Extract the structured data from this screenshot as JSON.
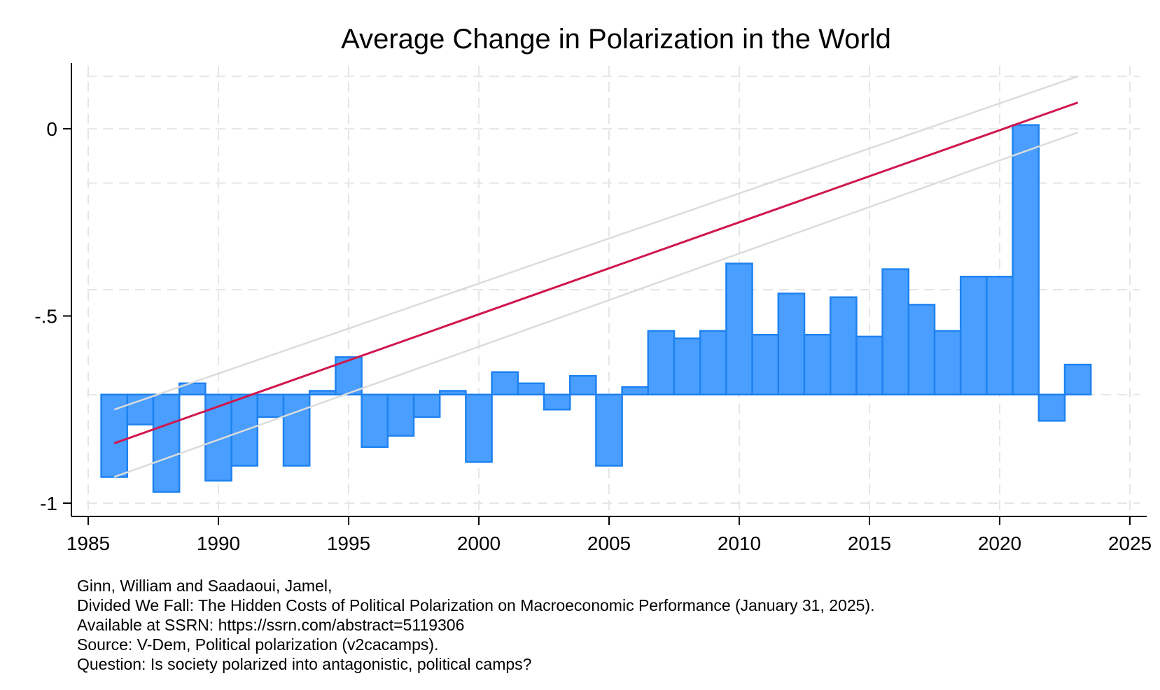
{
  "colors": {
    "bar_fill": "#4A9EFF",
    "bar_edge": "#1E82F0",
    "fit_line": "#D0174E",
    "ci_line": "#DCDCDC",
    "grid": "#E6E6E6",
    "axis": "#000000"
  },
  "chart_data": {
    "type": "bar",
    "title": "Average Change in Polarization in the World",
    "xlabel": "",
    "ylabel": "",
    "xlim": [
      1985,
      2025
    ],
    "ylim": [
      -1.04,
      0.17
    ],
    "xticks": [
      1985,
      1990,
      1995,
      2000,
      2005,
      2010,
      2015,
      2020,
      2025
    ],
    "xtick_labels": [
      "1985",
      "1990",
      "1995",
      "2000",
      "2005",
      "2010",
      "2015",
      "2020",
      "2025"
    ],
    "yticks": [
      0,
      -0.5,
      -1
    ],
    "ytick_labels": [
      "0",
      "-.5",
      "-1"
    ],
    "ygrid": [
      0.14,
      0,
      -0.145,
      -0.43,
      -0.71,
      -1
    ],
    "bar_base": -0.71,
    "grid": true,
    "x": [
      1986,
      1987,
      1988,
      1989,
      1990,
      1991,
      1992,
      1993,
      1994,
      1995,
      1996,
      1997,
      1998,
      1999,
      2000,
      2001,
      2002,
      2003,
      2004,
      2005,
      2006,
      2007,
      2008,
      2009,
      2010,
      2011,
      2012,
      2013,
      2014,
      2015,
      2016,
      2017,
      2018,
      2019,
      2020,
      2021,
      2022,
      2023
    ],
    "values": [
      -0.93,
      -0.79,
      -0.97,
      -0.68,
      -0.94,
      -0.9,
      -0.77,
      -0.9,
      -0.7,
      -0.61,
      -0.85,
      -0.82,
      -0.77,
      -0.7,
      -0.89,
      -0.65,
      -0.68,
      -0.75,
      -0.66,
      -0.9,
      -0.69,
      -0.54,
      -0.56,
      -0.54,
      -0.36,
      -0.55,
      -0.44,
      -0.55,
      -0.45,
      -0.555,
      -0.375,
      -0.47,
      -0.54,
      -0.395,
      -0.395,
      0.01,
      -0.78,
      -0.63
    ],
    "fit_line": {
      "x": [
        1986,
        2023
      ],
      "y": [
        -0.84,
        0.07
      ]
    },
    "ci_upper": {
      "x": [
        1986,
        2023
      ],
      "y": [
        -0.75,
        0.14
      ]
    },
    "ci_lower": {
      "x": [
        1986,
        2023
      ],
      "y": [
        -0.93,
        -0.01
      ]
    }
  },
  "notes": [
    "Ginn, William and Saadaoui, Jamel,",
    "Divided We Fall: The Hidden Costs of Political Polarization on Macroeconomic Performance (January 31, 2025).",
    "Available at SSRN: https://ssrn.com/abstract=5119306",
    "Source: V-Dem, Political polarization (v2cacamps).",
    "Question: Is society polarized into antagonistic, political camps?"
  ]
}
